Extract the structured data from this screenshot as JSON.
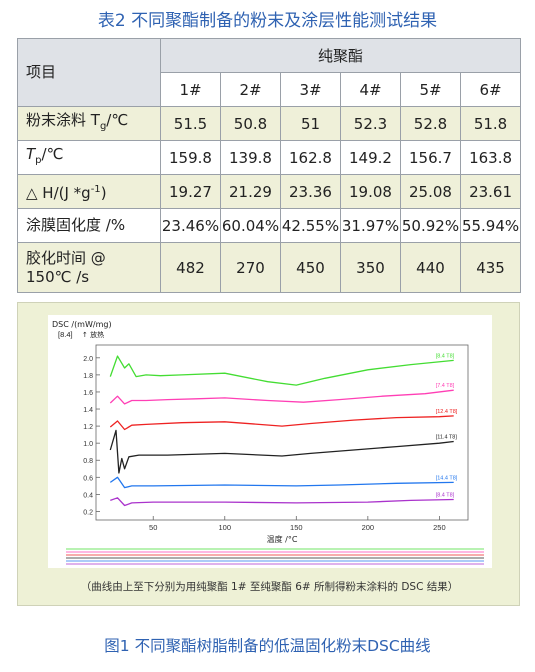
{
  "table": {
    "caption": "表2 不同聚酯制备的粉末及涂层性能测试结果",
    "header_item": "项目",
    "header_group": "纯聚酯",
    "columns": [
      "1#",
      "2#",
      "3#",
      "4#",
      "5#",
      "6#"
    ],
    "rows": [
      {
        "label_pre": "粉末涂料 T",
        "label_sub": "g",
        "label_post": "/℃",
        "values": [
          "51.5",
          "50.8",
          "51",
          "52.3",
          "52.8",
          "51.8"
        ]
      },
      {
        "label_pre": "T",
        "label_sub": "p",
        "label_post": "/℃",
        "values": [
          "159.8",
          "139.8",
          "162.8",
          "149.2",
          "156.7",
          "163.8"
        ]
      },
      {
        "label_pre": "△ H/(J *g",
        "label_sup": "-1",
        "label_post": ")",
        "values": [
          "19.27",
          "21.29",
          "23.36",
          "19.08",
          "25.08",
          "23.61"
        ]
      },
      {
        "label_pre": "涂膜固化度 /%",
        "values": [
          "23.46%",
          "60.04%",
          "42.55%",
          "31.97%",
          "50.92%",
          "55.94%"
        ]
      },
      {
        "label_line1": "胶化时间 @",
        "label_line2": "150℃ /s",
        "values": [
          "482",
          "270",
          "450",
          "350",
          "440",
          "435"
        ]
      }
    ]
  },
  "figure": {
    "caption": "图1 不同聚酯树脂制备的低温固化粉末DSC曲线",
    "note": "（曲线由上至下分别为用纯聚酯 1# 至纯聚酯 6# 所制得粉末涂料的 DSC 结果）"
  },
  "chart_data": {
    "type": "line",
    "ylabel": "DSC /(mW/mg)",
    "ylabel2": "[8.4]",
    "ylabel3": "↑ 放热",
    "xlabel": "温度 /°C",
    "xlim": [
      10,
      270
    ],
    "ylim": [
      0.1,
      2.15
    ],
    "xticks": [
      50,
      100,
      150,
      200,
      250
    ],
    "yticks": [
      0.2,
      0.4,
      0.6,
      0.8,
      1.0,
      1.2,
      1.4,
      1.6,
      1.8,
      2.0
    ],
    "series": [
      {
        "name": "[8.4 T8]",
        "color": "#44dd33",
        "x": [
          20,
          25,
          30,
          33,
          38,
          45,
          55,
          70,
          100,
          130,
          150,
          170,
          200,
          230,
          260
        ],
        "y": [
          1.78,
          2.02,
          1.88,
          1.93,
          1.78,
          1.8,
          1.79,
          1.8,
          1.82,
          1.72,
          1.68,
          1.76,
          1.86,
          1.92,
          1.97
        ]
      },
      {
        "name": "[7.4 T8]",
        "color": "#ff3fb5",
        "x": [
          20,
          25,
          30,
          35,
          45,
          60,
          80,
          100,
          130,
          155,
          180,
          210,
          240,
          260
        ],
        "y": [
          1.47,
          1.55,
          1.46,
          1.5,
          1.5,
          1.51,
          1.52,
          1.53,
          1.5,
          1.48,
          1.51,
          1.55,
          1.58,
          1.62
        ]
      },
      {
        "name": "[12.4 T8]",
        "color": "#ee2222",
        "x": [
          20,
          25,
          30,
          35,
          45,
          70,
          100,
          140,
          160,
          190,
          220,
          250,
          260
        ],
        "y": [
          1.19,
          1.26,
          1.16,
          1.21,
          1.22,
          1.24,
          1.25,
          1.2,
          1.23,
          1.27,
          1.3,
          1.31,
          1.32
        ]
      },
      {
        "name": "[11.4 T8]",
        "color": "#222222",
        "x": [
          20,
          24,
          26,
          28,
          30,
          33,
          40,
          60,
          100,
          140,
          160,
          190,
          220,
          250,
          260
        ],
        "y": [
          0.92,
          1.15,
          0.65,
          0.82,
          0.7,
          0.84,
          0.86,
          0.86,
          0.88,
          0.85,
          0.88,
          0.92,
          0.96,
          1.0,
          1.02
        ]
      },
      {
        "name": "[14.4 T8]",
        "color": "#2277ee",
        "x": [
          20,
          25,
          30,
          35,
          50,
          100,
          150,
          180,
          220,
          260
        ],
        "y": [
          0.54,
          0.6,
          0.48,
          0.5,
          0.5,
          0.51,
          0.5,
          0.51,
          0.53,
          0.54
        ]
      },
      {
        "name": "[8.4 T8]",
        "color": "#aa33cc",
        "x": [
          20,
          25,
          30,
          35,
          50,
          100,
          150,
          200,
          230,
          260
        ],
        "y": [
          0.33,
          0.36,
          0.27,
          0.3,
          0.31,
          0.31,
          0.3,
          0.31,
          0.33,
          0.34
        ]
      }
    ]
  }
}
